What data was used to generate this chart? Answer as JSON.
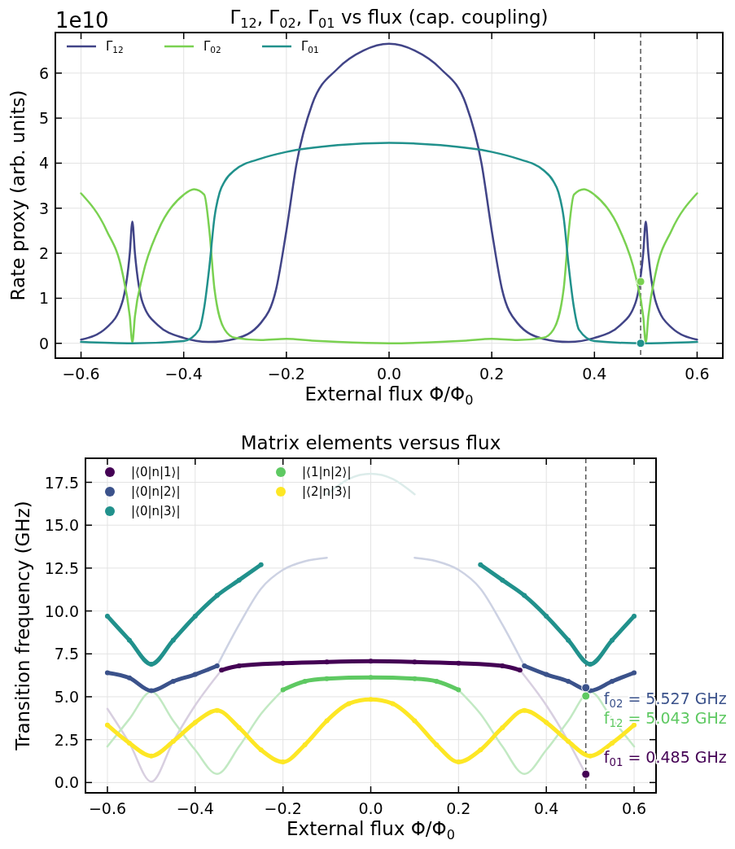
{
  "chart_data": [
    {
      "type": "line",
      "title": "Γ$_{12}$,  Γ$_{02}$,  Γ$_{01}$ vs flux  (cap. coupling)",
      "xlabel": "External flux Φ/Φ$_{0}$",
      "ylabel": "Rate proxy  (arb. units)",
      "annotations": [
        "1e10"
      ],
      "xlim": [
        -0.65,
        0.65
      ],
      "xticks": [
        {
          "value": -0.6,
          "label": "−0.6"
        },
        {
          "value": -0.4,
          "label": "−0.4"
        },
        {
          "value": -0.2,
          "label": "−0.2"
        },
        {
          "value": 0,
          "label": "0.0"
        },
        {
          "value": 0.2,
          "label": "0.2"
        },
        {
          "value": 0.4,
          "label": "0.4"
        },
        {
          "value": 0.6,
          "label": "0.6"
        }
      ],
      "ylim": [
        -0.33,
        6.9
      ],
      "yticks": [
        0,
        1,
        2,
        3,
        4,
        5,
        6
      ],
      "grid": true,
      "legend": "top left",
      "ref_lines": [
        {
          "axis": "x",
          "value": 0.49,
          "color": "#555555",
          "line_style": "dashed"
        }
      ],
      "series": [
        {
          "name": "Γ$_{12}$",
          "color": "#414487",
          "x": [
            -0.6,
            -0.55,
            -0.52,
            -0.505,
            -0.5,
            -0.495,
            -0.48,
            -0.45,
            -0.4,
            -0.35,
            -0.3,
            -0.25,
            -0.22,
            -0.2,
            -0.18,
            -0.15,
            -0.1,
            -0.05,
            0,
            0.05,
            0.1,
            0.15,
            0.18,
            0.2,
            0.22,
            0.25,
            0.3,
            0.35,
            0.4,
            0.45,
            0.48,
            0.495,
            0.5,
            0.505,
            0.52,
            0.55,
            0.6
          ],
          "values": [
            0.08,
            0.35,
            0.9,
            2.0,
            2.7,
            2.0,
            0.9,
            0.4,
            0.12,
            0.03,
            0.1,
            0.45,
            1.2,
            2.5,
            4.0,
            5.3,
            6.1,
            6.5,
            6.65,
            6.5,
            6.1,
            5.3,
            4.0,
            2.5,
            1.2,
            0.45,
            0.1,
            0.03,
            0.12,
            0.4,
            0.9,
            2.0,
            2.7,
            2.0,
            0.9,
            0.35,
            0.08
          ]
        },
        {
          "name": "Γ$_{02}$",
          "color": "#7ad151",
          "x": [
            -0.6,
            -0.55,
            -0.52,
            -0.505,
            -0.5,
            -0.495,
            -0.48,
            -0.45,
            -0.4,
            -0.38,
            -0.36,
            -0.35,
            -0.34,
            -0.32,
            -0.3,
            -0.25,
            -0.2,
            -0.15,
            -0.1,
            0,
            0.1,
            0.15,
            0.2,
            0.25,
            0.3,
            0.32,
            0.34,
            0.35,
            0.36,
            0.38,
            0.4,
            0.45,
            0.48,
            0.495,
            0.5,
            0.505,
            0.52,
            0.55,
            0.6
          ],
          "values": [
            3.33,
            2.5,
            1.6,
            0.6,
            0.02,
            0.6,
            1.5,
            2.5,
            3.3,
            3.42,
            3.3,
            2.5,
            1.2,
            0.3,
            0.12,
            0.07,
            0.1,
            0.06,
            0.03,
            0.0,
            0.03,
            0.06,
            0.1,
            0.07,
            0.12,
            0.3,
            1.2,
            2.5,
            3.3,
            3.42,
            3.3,
            2.5,
            1.5,
            0.6,
            0.02,
            0.6,
            1.6,
            2.5,
            3.33
          ]
        },
        {
          "name": "Γ$_{01}$",
          "color": "#21918c",
          "x": [
            -0.6,
            -0.5,
            -0.4,
            -0.37,
            -0.36,
            -0.35,
            -0.34,
            -0.33,
            -0.32,
            -0.3,
            -0.25,
            -0.2,
            -0.1,
            0,
            0.1,
            0.2,
            0.25,
            0.3,
            0.32,
            0.33,
            0.34,
            0.35,
            0.36,
            0.37,
            0.4,
            0.5,
            0.6
          ],
          "values": [
            0.03,
            0.0,
            0.05,
            0.3,
            0.8,
            1.7,
            2.8,
            3.35,
            3.6,
            3.85,
            4.1,
            4.25,
            4.4,
            4.45,
            4.4,
            4.25,
            4.1,
            3.85,
            3.6,
            3.35,
            2.8,
            1.7,
            0.8,
            0.3,
            0.05,
            0.0,
            0.03
          ]
        },
        {
          "type": "scatter",
          "x": [
            0.49,
            0.49
          ],
          "values": [
            1.37,
            0.0
          ],
          "colors": [
            "#7ad151",
            "#21918c"
          ],
          "marker": "circle"
        }
      ]
    },
    {
      "type": "line",
      "title": "Matrix elements versus flux",
      "xlabel": "External flux Φ/Φ$_{0}$",
      "ylabel": "Transition frequency (GHz)",
      "xlim": [
        -0.65,
        0.65
      ],
      "xticks": [
        {
          "value": -0.6,
          "label": "−0.6"
        },
        {
          "value": -0.4,
          "label": "−0.4"
        },
        {
          "value": -0.2,
          "label": "−0.2"
        },
        {
          "value": 0,
          "label": "0.0"
        },
        {
          "value": 0.2,
          "label": "0.2"
        },
        {
          "value": 0.4,
          "label": "0.4"
        },
        {
          "value": 0.6,
          "label": "0.6"
        }
      ],
      "ylim": [
        -0.6,
        18.9
      ],
      "yticks": [
        {
          "value": 0,
          "label": "0.0"
        },
        2.5,
        {
          "value": 5,
          "label": "5.0"
        },
        7.5,
        {
          "value": 10,
          "label": "10.0"
        },
        12.5,
        {
          "value": 15,
          "label": "15.0"
        },
        17.5
      ],
      "grid": true,
      "legend": "top left",
      "ref_lines": [
        {
          "axis": "x",
          "value": 0.49,
          "color": "#555555",
          "line_style": "dashed"
        }
      ],
      "annotations": [
        "f$_{02}$ = 5.527 GHz",
        "f$_{12}$ = 5.043 GHz",
        "f$_{01}$ = 0.485 GHz"
      ],
      "series": [
        {
          "color": "#d8cfe0",
          "x": [
            -0.6,
            -0.55,
            -0.5,
            -0.45,
            -0.4,
            -0.34,
            0,
            0.34,
            0.4,
            0.45,
            0.49
          ],
          "values": [
            4.3,
            2.3,
            0.05,
            2.4,
            4.5,
            6.55,
            null,
            6.55,
            4.5,
            2.4,
            0.485
          ]
        },
        {
          "color": "#cdd2e3",
          "x": [
            -0.35,
            -0.3,
            -0.25,
            -0.2,
            -0.15,
            -0.1,
            0,
            0.1,
            0.15,
            0.2,
            0.25,
            0.3,
            0.35
          ],
          "values": [
            6.8,
            9.2,
            11.3,
            12.4,
            12.9,
            13.1,
            null,
            13.1,
            12.9,
            12.4,
            11.3,
            9.2,
            6.8
          ]
        },
        {
          "color": "#dcecea",
          "x": [
            -0.1,
            -0.05,
            0,
            0.05,
            0.1
          ],
          "values": [
            16.8,
            17.7,
            18.0,
            17.7,
            16.8
          ]
        },
        {
          "color": "#c2e9c3",
          "x": [
            -0.6,
            -0.55,
            -0.5,
            -0.45,
            -0.4,
            -0.35,
            -0.3,
            -0.25,
            -0.2,
            0,
            0.2,
            0.25,
            0.3,
            0.35,
            0.4,
            0.45,
            0.5,
            0.55,
            0.6
          ],
          "values": [
            2.1,
            3.7,
            5.3,
            3.6,
            1.9,
            0.5,
            2.1,
            4.0,
            5.4,
            null,
            5.4,
            4.0,
            2.1,
            0.5,
            1.9,
            3.6,
            5.3,
            3.7,
            2.1
          ]
        },
        {
          "name": "|⟨0|n|1⟩|",
          "color": "#440154",
          "marker": "circle",
          "x": [
            -0.34,
            -0.3,
            -0.2,
            -0.1,
            0,
            0.1,
            0.2,
            0.3,
            0.34
          ],
          "values": [
            6.55,
            6.8,
            6.95,
            7.03,
            7.07,
            7.03,
            6.95,
            6.8,
            6.55
          ]
        },
        {
          "name": "|⟨0|n|2⟩|",
          "color": "#3b528b",
          "marker": "circle",
          "x": [
            -0.6,
            -0.55,
            -0.5,
            -0.45,
            -0.4,
            -0.35,
            0,
            0.35,
            0.4,
            0.45,
            0.5,
            0.55,
            0.6
          ],
          "values": [
            6.4,
            6.1,
            5.35,
            5.9,
            6.3,
            6.8,
            null,
            6.8,
            6.3,
            5.9,
            5.35,
            5.9,
            6.4
          ]
        },
        {
          "name": "|⟨0|n|3⟩|",
          "color": "#21918c",
          "marker": "circle",
          "x": [
            -0.6,
            -0.55,
            -0.5,
            -0.45,
            -0.4,
            -0.35,
            -0.3,
            -0.25,
            0,
            0.25,
            0.3,
            0.35,
            0.4,
            0.45,
            0.5,
            0.55,
            0.6
          ],
          "values": [
            9.7,
            8.3,
            6.9,
            8.3,
            9.7,
            10.9,
            11.8,
            12.7,
            null,
            12.7,
            11.8,
            10.9,
            9.7,
            8.3,
            6.9,
            8.3,
            9.7
          ]
        },
        {
          "name": "|⟨1|n|2⟩|",
          "color": "#5ec962",
          "marker": "circle",
          "x": [
            -0.2,
            -0.15,
            -0.1,
            0,
            0.1,
            0.15,
            0.2
          ],
          "values": [
            5.4,
            5.9,
            6.05,
            6.12,
            6.05,
            5.9,
            5.4
          ]
        },
        {
          "name": "|⟨2|n|3⟩|",
          "color": "#fde725",
          "marker": "circle",
          "x": [
            -0.6,
            -0.55,
            -0.5,
            -0.45,
            -0.4,
            -0.35,
            -0.3,
            -0.25,
            -0.2,
            -0.15,
            -0.1,
            -0.05,
            0,
            0.05,
            0.1,
            0.15,
            0.2,
            0.25,
            0.3,
            0.35,
            0.4,
            0.45,
            0.5,
            0.55,
            0.6
          ],
          "values": [
            3.35,
            2.3,
            1.55,
            2.4,
            3.5,
            4.2,
            3.2,
            1.9,
            1.2,
            2.2,
            3.6,
            4.6,
            4.85,
            4.6,
            3.6,
            2.2,
            1.2,
            1.9,
            3.2,
            4.2,
            3.5,
            2.4,
            1.55,
            2.3,
            3.35
          ]
        },
        {
          "type": "scatter",
          "x": [
            0.49,
            0.49,
            0.49
          ],
          "values": [
            5.527,
            5.043,
            0.485
          ],
          "colors": [
            "#3b528b",
            "#5ec962",
            "#440154"
          ],
          "marker": "circle"
        }
      ]
    }
  ]
}
